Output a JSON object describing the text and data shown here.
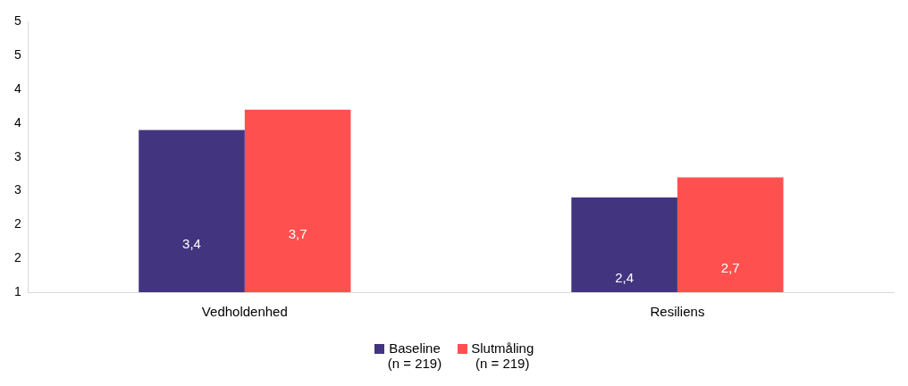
{
  "chart_data": {
    "type": "bar",
    "categories": [
      "Vedholdenhed",
      "Resiliens"
    ],
    "series": [
      {
        "name": "Baseline\n(n = 219)",
        "color": "#433480",
        "values": [
          3.4,
          2.4
        ],
        "value_labels": [
          "3,4",
          "2,4"
        ]
      },
      {
        "name": "Slutmåling\n(n = 219)",
        "color": "#ff5050",
        "values": [
          3.7,
          2.7
        ],
        "value_labels": [
          "3,7",
          "2,7"
        ]
      }
    ],
    "ylim": [
      1,
      5
    ],
    "yticks": [
      1,
      {
        "value": 1.5,
        "label": "2"
      },
      2,
      {
        "value": 2.5,
        "label": "3"
      },
      3,
      {
        "value": 3.5,
        "label": "4"
      },
      4,
      {
        "value": 4.5,
        "label": "5"
      },
      5
    ],
    "grid": false,
    "legend": "bottom"
  }
}
